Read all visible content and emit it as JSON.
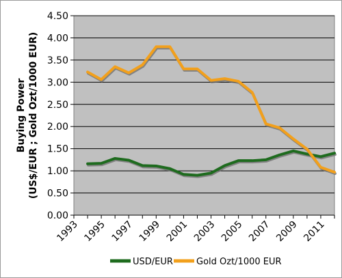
{
  "chart_data": {
    "type": "line",
    "title": "",
    "xlabel": "",
    "ylabel": "Buying Power",
    "ylabel_line2": "(US$/EUR ; Gold Ozt/1000 EUR)",
    "ylim": [
      0,
      4.5
    ],
    "xlim": [
      1993,
      2012
    ],
    "y_ticks": [
      "0.00",
      "0.50",
      "1.00",
      "1.50",
      "2.00",
      "2.50",
      "3.00",
      "3.50",
      "4.00",
      "4.50"
    ],
    "x_ticks": [
      "1993",
      "1995",
      "1997",
      "1999",
      "2001",
      "2003",
      "2005",
      "2007",
      "2009",
      "2011"
    ],
    "grid": "horizontal",
    "legend_position": "bottom",
    "x": [
      1994,
      1995,
      1996,
      1997,
      1998,
      1999,
      2000,
      2001,
      2002,
      2003,
      2004,
      2005,
      2006,
      2007,
      2008,
      2009,
      2010,
      2011,
      2012
    ],
    "series": [
      {
        "name": "USD/EUR",
        "color": "#1e6b1e",
        "values": [
          1.16,
          1.17,
          1.28,
          1.24,
          1.12,
          1.11,
          1.05,
          0.92,
          0.9,
          0.95,
          1.12,
          1.23,
          1.23,
          1.25,
          1.36,
          1.45,
          1.38,
          1.32,
          1.4
        ]
      },
      {
        "name": "Gold Ozt/1000 EUR",
        "color": "#f2a01c",
        "values": [
          3.23,
          3.06,
          3.35,
          3.21,
          3.39,
          3.8,
          3.8,
          3.3,
          3.3,
          3.04,
          3.08,
          3.02,
          2.77,
          2.06,
          1.97,
          1.72,
          1.49,
          1.08,
          0.97
        ]
      }
    ]
  }
}
